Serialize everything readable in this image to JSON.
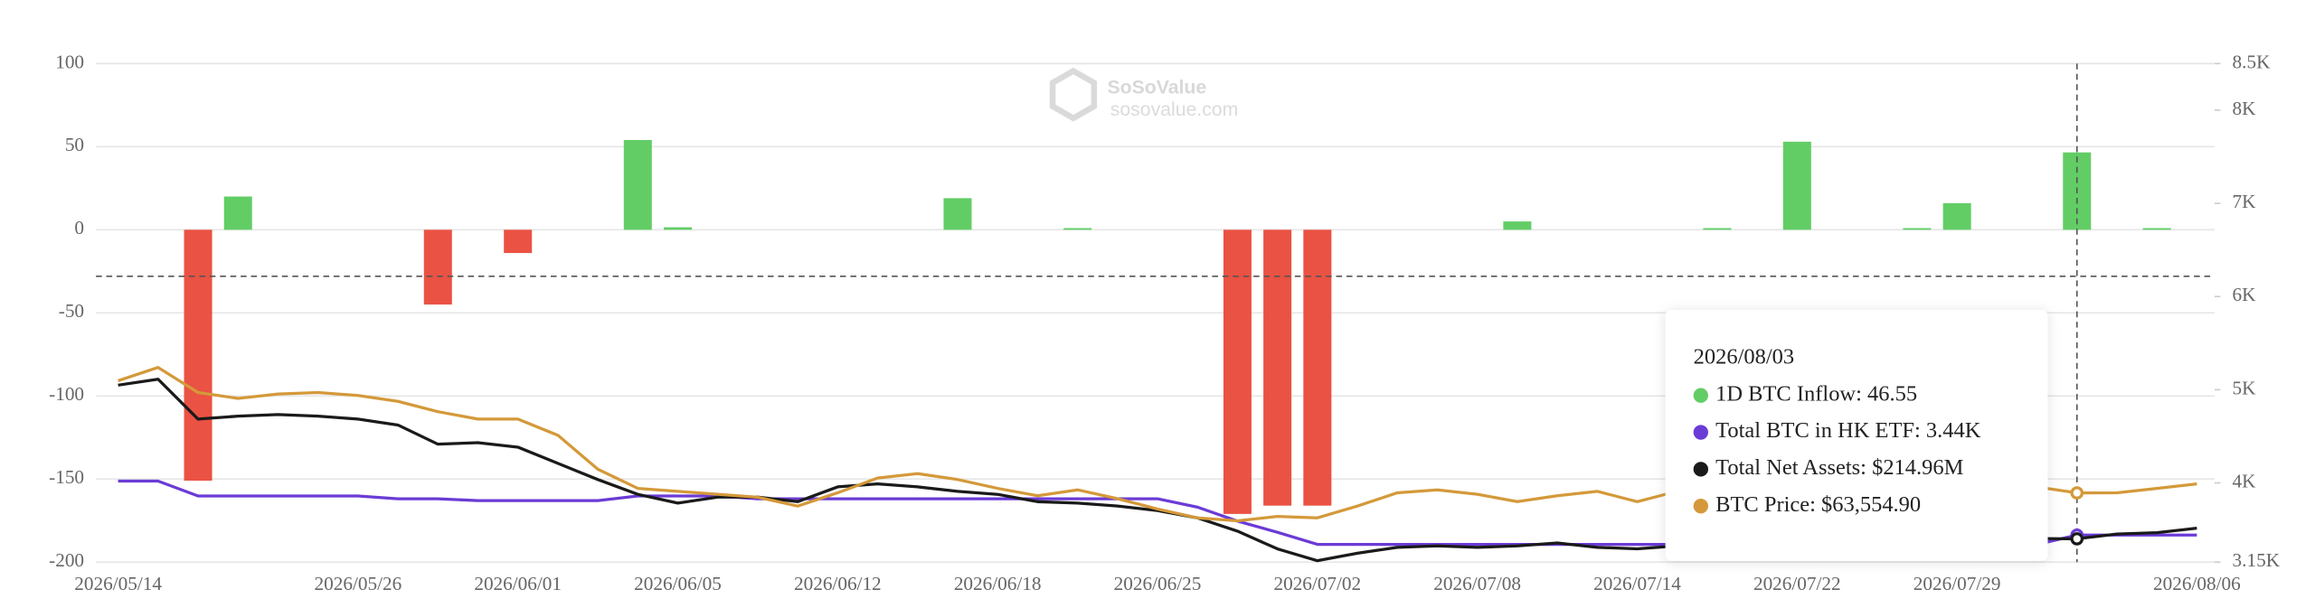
{
  "chart_data": {
    "type": "bar-line",
    "watermark": {
      "brand": "SoSoValue",
      "site": "sosovalue.com"
    },
    "categories": [
      "2026/05/14",
      null,
      null,
      null,
      null,
      null,
      "2026/05/26",
      null,
      null,
      null,
      "2026/06/01",
      null,
      null,
      null,
      "2026/06/05",
      null,
      null,
      null,
      "2026/06/12",
      null,
      null,
      null,
      "2026/06/18",
      null,
      null,
      null,
      "2026/06/25",
      null,
      null,
      null,
      "2026/07/02",
      null,
      null,
      null,
      "2026/07/08",
      null,
      null,
      null,
      "2026/07/14",
      null,
      null,
      null,
      "2026/07/22",
      null,
      null,
      null,
      "2026/07/29",
      null,
      null,
      null,
      null,
      null,
      "2026/08/06"
    ],
    "ylim": [
      -200,
      100
    ],
    "yticks": [
      100,
      50,
      0,
      -50,
      -100,
      -150,
      -200
    ],
    "y2lim": [
      3.15,
      8.5
    ],
    "y2ticks": [
      {
        "value": 8.5,
        "label": "8.5K"
      },
      {
        "value": 8,
        "label": "8K"
      },
      {
        "value": 7,
        "label": "7K"
      },
      {
        "value": 6,
        "label": "6K"
      },
      {
        "value": 5,
        "label": "5K"
      },
      {
        "value": 4,
        "label": "4K"
      },
      {
        "value": 3.15,
        "label": "3.15K"
      }
    ],
    "y3lim": [
      58000,
      98000
    ],
    "y4lim": [
      200,
      520
    ],
    "grid": true,
    "crosshair": {
      "index": 49,
      "y": -28
    },
    "series": [
      {
        "type": "bar",
        "color": "#62cd65",
        "negative_color": "#ea5243",
        "axis": "y",
        "values": [
          0,
          0,
          -151,
          20,
          0,
          0,
          0,
          0,
          -45,
          0,
          -14,
          0,
          0,
          54,
          1.5,
          0,
          0,
          0,
          0,
          0,
          0,
          19,
          0,
          0,
          1,
          0,
          0,
          0,
          -171,
          -166,
          -166,
          0,
          0,
          0,
          0,
          5,
          0,
          0,
          0,
          0,
          1,
          0,
          53,
          0,
          0,
          1,
          16,
          0,
          0,
          46.55,
          0,
          1,
          0
        ]
      },
      {
        "type": "line",
        "color": "#6b3bd6",
        "axis": "y2",
        "values": [
          4.02,
          4.02,
          3.86,
          3.86,
          3.86,
          3.86,
          3.86,
          3.83,
          3.83,
          3.81,
          3.81,
          3.81,
          3.81,
          3.86,
          3.86,
          3.86,
          3.83,
          3.83,
          3.83,
          3.83,
          3.83,
          3.83,
          3.83,
          3.83,
          3.83,
          3.83,
          3.83,
          3.74,
          3.59,
          3.47,
          3.34,
          3.34,
          3.34,
          3.34,
          3.34,
          3.34,
          3.34,
          3.34,
          3.34,
          3.34,
          3.34,
          3.34,
          3.34,
          3.34,
          3.34,
          3.34,
          3.34,
          3.34,
          3.34,
          3.44,
          3.44,
          3.44,
          3.44
        ]
      },
      {
        "type": "line",
        "color": "#1a1a1a",
        "axis": "y4",
        "values": [
          313.6,
          317.4,
          291.8,
          293.7,
          294.7,
          293.7,
          291.8,
          288.0,
          275.7,
          276.7,
          273.8,
          263.4,
          253.0,
          243.5,
          237.9,
          241.7,
          241.7,
          238.8,
          248.3,
          250.2,
          248.3,
          245.4,
          243.5,
          238.8,
          237.9,
          236.0,
          233.1,
          228.4,
          219.9,
          208.5,
          200.9,
          205.7,
          209.5,
          210.4,
          209.5,
          210.4,
          212.3,
          209.5,
          208.5,
          210.4,
          211.4,
          212.3,
          212.3,
          213.3,
          212.3,
          213.3,
          214.2,
          215.1,
          215.1,
          214.96,
          218.0,
          218.9,
          221.8
        ]
      },
      {
        "type": "line",
        "color": "#d4993a",
        "axis": "y3",
        "values": [
          72556,
          73621,
          71609,
          71136,
          71491,
          71609,
          71372,
          70899,
          70071,
          69479,
          69479,
          68177,
          65455,
          63917,
          63680,
          63444,
          63207,
          62497,
          63562,
          64745,
          65100,
          64627,
          63917,
          63325,
          63799,
          63089,
          62260,
          61550,
          61314,
          61669,
          61550,
          62497,
          63562,
          63799,
          63444,
          62852,
          63325,
          63680,
          62852,
          63680,
          63917,
          64035,
          64272,
          64035,
          64154,
          64390,
          64509,
          64272,
          64035,
          63554.9,
          63562,
          63917,
          64272
        ]
      }
    ],
    "tooltip": {
      "title": "2026/08/03",
      "items": [
        "1D BTC Inflow: 46.55",
        "Total BTC in HK ETF: 3.44K",
        "Total Net Assets: $214.96M",
        "BTC Price: $63,554.90"
      ]
    }
  }
}
